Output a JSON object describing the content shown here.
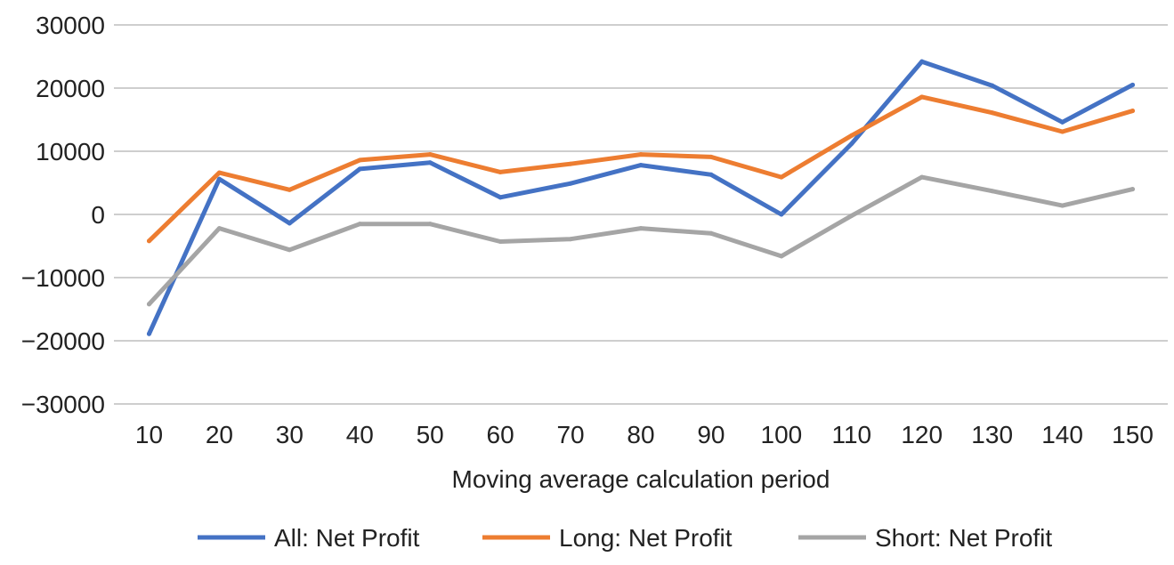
{
  "chart_data": {
    "type": "line",
    "title": "",
    "xlabel": "Moving average calculation period",
    "ylabel": "",
    "categories": [
      "10",
      "20",
      "30",
      "40",
      "50",
      "60",
      "70",
      "80",
      "90",
      "100",
      "110",
      "120",
      "130",
      "140",
      "150"
    ],
    "yticks": [
      "30000",
      "20000",
      "10000",
      "0",
      "−10000",
      "−20000",
      "−30000"
    ],
    "ylim": [
      -30000,
      30000
    ],
    "grid": true,
    "legend_position": "bottom",
    "series": [
      {
        "name": "All: Net Profit",
        "color": "#4472C4",
        "values": [
          -18900,
          5600,
          -1400,
          7200,
          8200,
          2700,
          4900,
          7800,
          6300,
          0,
          11200,
          24200,
          20400,
          14600,
          20500
        ]
      },
      {
        "name": "Long: Net Profit",
        "color": "#ED7D31",
        "values": [
          -4200,
          6600,
          3900,
          8600,
          9500,
          6700,
          8000,
          9500,
          9100,
          5900,
          12500,
          18600,
          16100,
          13100,
          16400
        ]
      },
      {
        "name": "Short: Net Profit",
        "color": "#A5A5A5",
        "values": [
          -14200,
          -2200,
          -5600,
          -1500,
          -1500,
          -4300,
          -3900,
          -2200,
          -3000,
          -6600,
          -200,
          5900,
          3700,
          1400,
          4000
        ]
      }
    ]
  }
}
